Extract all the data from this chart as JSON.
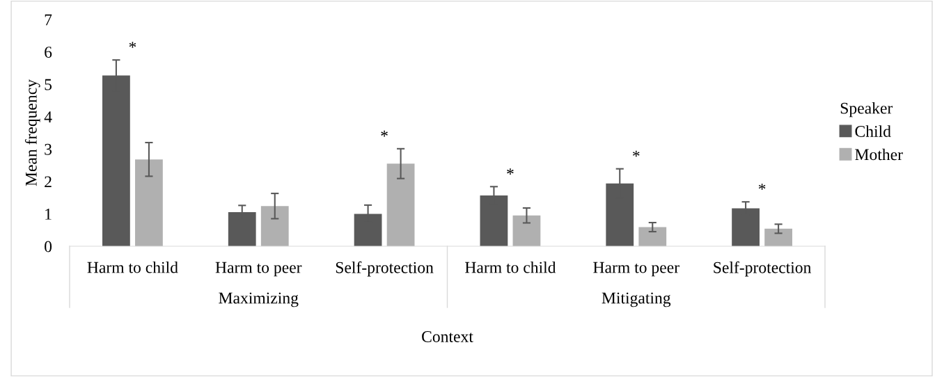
{
  "chart_data": {
    "type": "bar",
    "ylabel": "Mean frequency",
    "xlabel": "Context",
    "legend_title": "Speaker",
    "legend": "right",
    "categories": [
      "Harm to child",
      "Harm to peer",
      "Self-protection",
      "Harm to child",
      "Harm to peer",
      "Self-protection"
    ],
    "series": [
      {
        "name": "Child",
        "color": "#595959",
        "values": [
          5.27,
          1.05,
          1.0,
          1.57,
          1.94,
          1.17
        ],
        "errors": [
          0.48,
          0.21,
          0.27,
          0.27,
          0.45,
          0.2
        ]
      },
      {
        "name": "Mother",
        "color": "#b0b0b0",
        "values": [
          2.68,
          1.24,
          2.55,
          0.95,
          0.59,
          0.54
        ],
        "errors": [
          0.52,
          0.39,
          0.46,
          0.23,
          0.14,
          0.14
        ]
      }
    ],
    "ylim": [
      0,
      7
    ],
    "yticks": [
      0,
      1,
      2,
      3,
      4,
      5,
      6,
      7
    ],
    "grid": false,
    "annotations": [
      "*",
      "*",
      "*",
      "*",
      "*",
      "Maximizing",
      "Mitigating"
    ]
  }
}
